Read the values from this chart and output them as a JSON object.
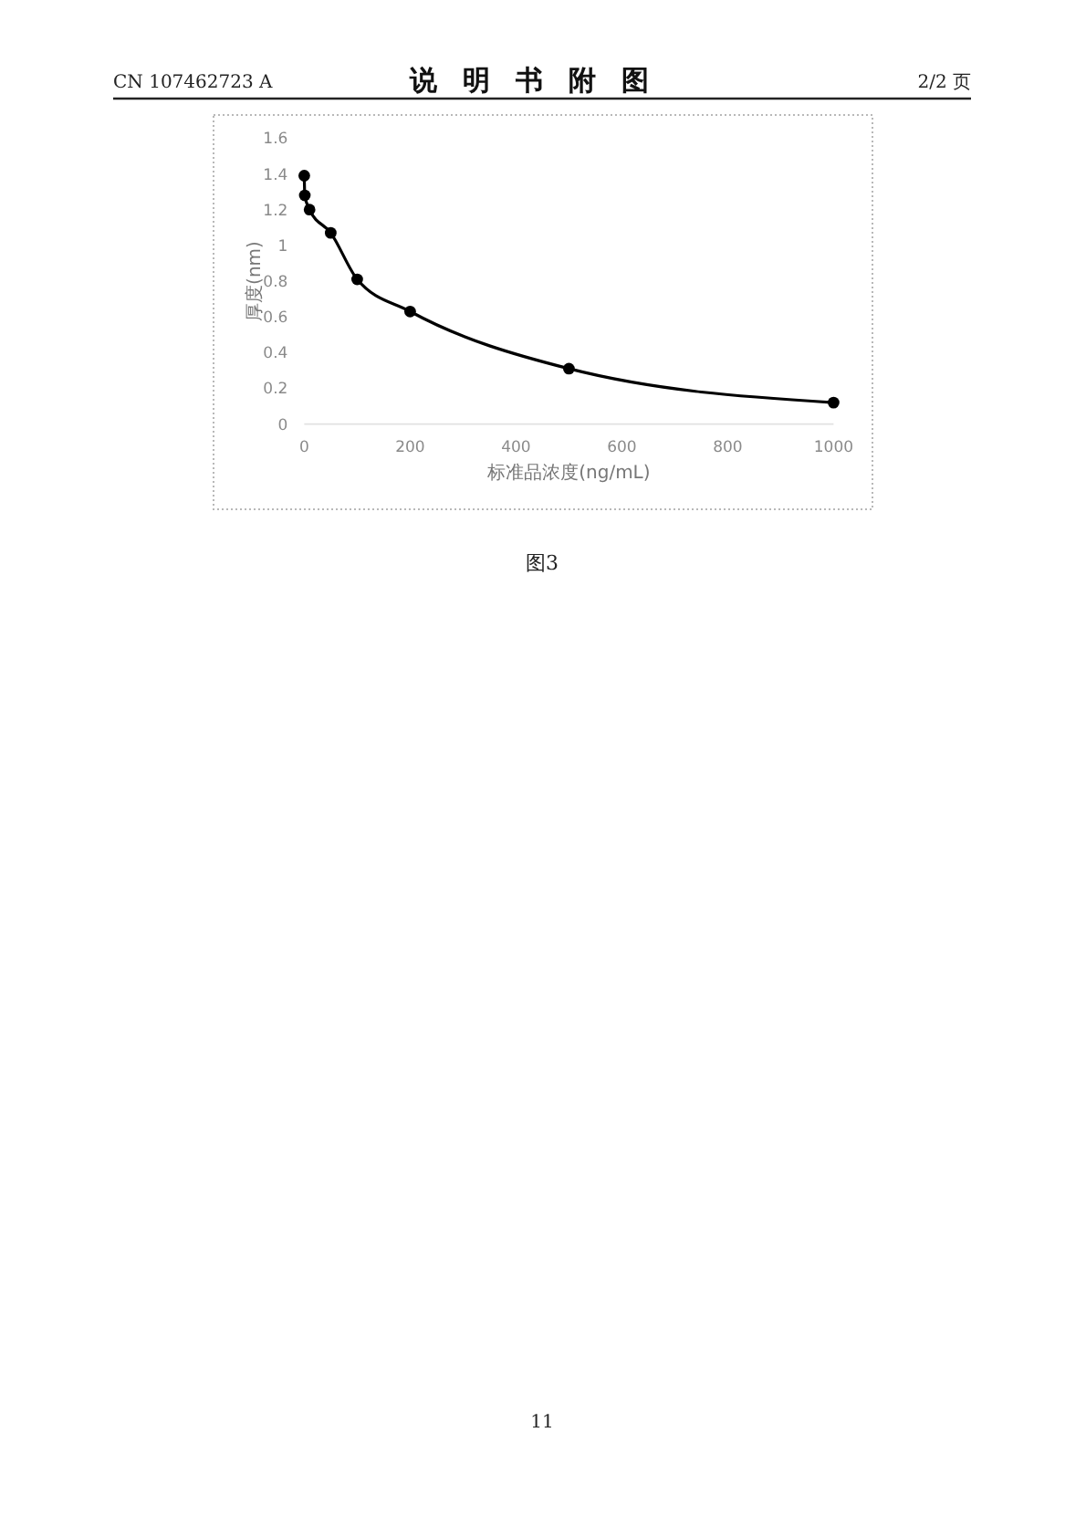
{
  "chart_data": {
    "type": "line",
    "title": "说明书附图",
    "xlabel": "标准品浓度(ng/mL)",
    "ylabel": "厚度(nm)",
    "x": [
      0,
      1,
      10,
      50,
      100,
      200,
      500,
      1000
    ],
    "series": [
      {
        "color": "#000000",
        "values": [
          1.39,
          1.28,
          1.2,
          1.07,
          0.81,
          0.63,
          0.31,
          0.12
        ]
      }
    ],
    "xlim": [
      0,
      1000
    ],
    "ylim": [
      0,
      1.6
    ],
    "xticks": [
      0,
      200,
      400,
      600,
      800,
      1000
    ],
    "yticks": [
      0,
      0.2,
      0.4,
      0.6,
      0.8,
      1,
      1.2,
      1.4,
      1.6
    ],
    "marker": "circle",
    "line_style": "solid",
    "grid": false,
    "annotations": [
      "CN 107462723 A",
      "2/2 页",
      "图3",
      "11"
    ]
  }
}
